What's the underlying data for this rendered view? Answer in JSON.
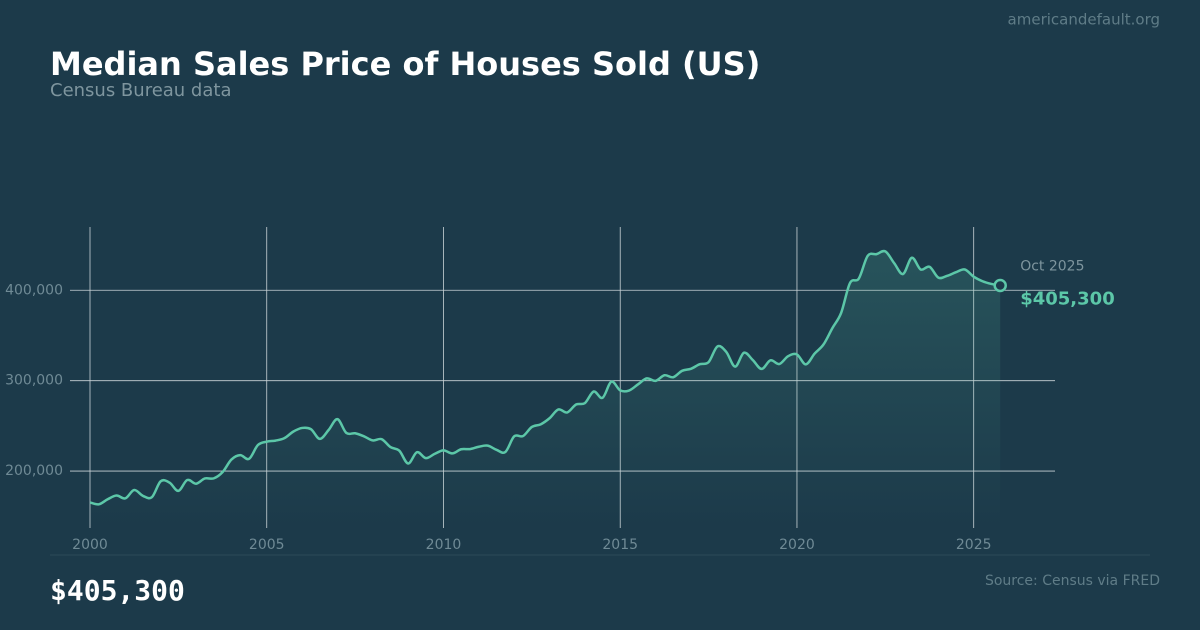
{
  "site": "americandefault.org",
  "chart_data": {
    "type": "line",
    "title": "Median Sales Price of Houses Sold (US)",
    "subtitle": "Census Bureau data",
    "color": "#5cc7a8",
    "x": [
      2000,
      2000.25,
      2000.5,
      2000.75,
      2001,
      2001.25,
      2001.5,
      2001.75,
      2002,
      2002.25,
      2002.5,
      2002.75,
      2003,
      2003.25,
      2003.5,
      2003.75,
      2004,
      2004.25,
      2004.5,
      2004.75,
      2005,
      2005.25,
      2005.5,
      2005.75,
      2006,
      2006.25,
      2006.5,
      2006.75,
      2007,
      2007.25,
      2007.5,
      2007.75,
      2008,
      2008.25,
      2008.5,
      2008.75,
      2009,
      2009.25,
      2009.5,
      2009.75,
      2010,
      2010.25,
      2010.5,
      2010.75,
      2011,
      2011.25,
      2011.5,
      2011.75,
      2012,
      2012.25,
      2012.5,
      2012.75,
      2013,
      2013.25,
      2013.5,
      2013.75,
      2014,
      2014.25,
      2014.5,
      2014.75,
      2015,
      2015.25,
      2015.5,
      2015.75,
      2016,
      2016.25,
      2016.5,
      2016.75,
      2017,
      2017.25,
      2017.5,
      2017.75,
      2018,
      2018.25,
      2018.5,
      2018.75,
      2019,
      2019.25,
      2019.5,
      2019.75,
      2020,
      2020.25,
      2020.5,
      2020.75,
      2021,
      2021.25,
      2021.5,
      2021.75,
      2022,
      2022.25,
      2022.5,
      2022.75,
      2023,
      2023.25,
      2023.5,
      2023.75,
      2024,
      2024.25,
      2024.5,
      2024.75,
      2025,
      2025.25,
      2025.5,
      2025.75
    ],
    "values": [
      165300,
      163200,
      168800,
      172900,
      169800,
      179000,
      172500,
      171100,
      188700,
      187200,
      178100,
      190100,
      186000,
      191800,
      191900,
      198800,
      212700,
      217600,
      213500,
      228800,
      232500,
      233700,
      236400,
      243600,
      247700,
      246300,
      235600,
      245400,
      257400,
      242200,
      241800,
      238400,
      233900,
      235300,
      226500,
      222500,
      208400,
      220900,
      214300,
      219000,
      222900,
      219500,
      224100,
      224300,
      226900,
      228100,
      223500,
      221100,
      238400,
      238700,
      248800,
      251700,
      258400,
      268100,
      264800,
      273600,
      275200,
      288000,
      281000,
      298900,
      289200,
      289100,
      295800,
      302500,
      299800,
      306000,
      303800,
      310900,
      313100,
      318200,
      320500,
      337900,
      331800,
      315600,
      330900,
      322800,
      313000,
      322500,
      318400,
      327100,
      329000,
      318000,
      330000,
      340000,
      358000,
      375000,
      408000,
      413000,
      438000,
      440000,
      443000,
      430000,
      418000,
      436000,
      423000,
      426000,
      414000,
      416000,
      420000,
      423000,
      415000,
      410000,
      407000,
      405300
    ],
    "end_label": "Oct 2025",
    "end_value_label": "$405,300",
    "xlim": [
      2000,
      2027.3
    ],
    "xticks": [
      2000,
      2005,
      2010,
      2015,
      2020,
      2025
    ],
    "ylim": [
      137000,
      470000
    ],
    "yticks": [
      {
        "value": 200000,
        "label": "200,000"
      },
      {
        "value": 300000,
        "label": "300,000"
      },
      {
        "value": 400000,
        "label": "400,000"
      }
    ],
    "grid": true
  },
  "footer": {
    "value": "$405,300",
    "source": "Source: Census via FRED"
  }
}
